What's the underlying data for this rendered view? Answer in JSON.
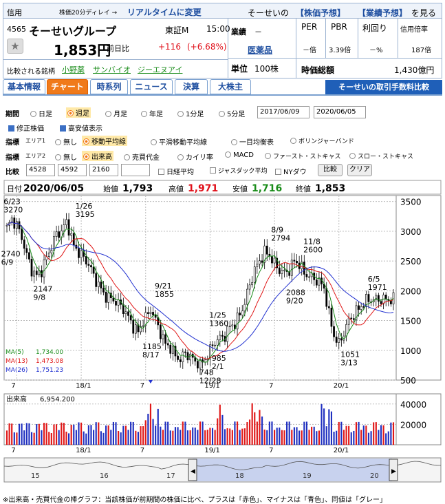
{
  "header": {
    "tab_label": "信用",
    "delay_note": "株価20分ディレイ →",
    "realtime_link": "リアルタイムに変更",
    "forecast_prefix": "そーせいの",
    "stock_forecast": "【株価予想】",
    "earnings_forecast": "【業績予想】",
    "forecast_suffix": "を見る",
    "code": "4565",
    "name": "そーせいグループ",
    "market": "東証M",
    "time": "15:00",
    "price": "1,853円",
    "prev_label": "前日比",
    "change": "+116",
    "change_pct": "(+6.68%)",
    "gyoseki_label": "業績",
    "gyoseki_value": "－",
    "sector": "医薬品",
    "unit_label": "単位",
    "unit_value": "100株",
    "per_label": "PER",
    "pbr_label": "PBR",
    "yield_label": "利回り",
    "margin_label": "信用倍率",
    "per_value": "－倍",
    "pbr_value": "3.39倍",
    "yield_value": "－%",
    "margin_value": "187倍",
    "mcap_label": "時価総額",
    "mcap_value": "1,430億円",
    "compare_label": "比較される銘柄",
    "compare_1": "小野薬",
    "compare_2": "サンバイオ",
    "compare_3": "ジーエヌアイ"
  },
  "tabs": [
    "基本情報",
    "チャート",
    "時系列",
    "ニュース",
    "決算",
    "大株主"
  ],
  "fee_button": "そーせいの取引手数料比較",
  "controls": {
    "period_label": "期間",
    "periods": [
      "日足",
      "週足",
      "月足",
      "年足",
      "1分足",
      "5分足"
    ],
    "from_date": "2017/06/09",
    "to_date": "2020/06/05",
    "check_adjusted": "修正株価",
    "check_highlow": "高安値表示",
    "ind_label": "指標",
    "area1": "エリア1",
    "area1_opts": [
      "無し",
      "移動平均線",
      "平滑移動平均線",
      "一目均衡表",
      "ボリンジャーバンド"
    ],
    "area2": "エリア2",
    "area2_opts": [
      "無し",
      "出来高",
      "売買代金",
      "カイリ率",
      "MACD",
      "ファースト・ストキャス",
      "スロー・ストキャス"
    ],
    "compare_label": "比較",
    "compare_inputs": [
      "4528",
      "4592",
      "2160",
      ""
    ],
    "compare_checks": [
      "日経平均",
      "ジャスダック平均",
      "NYダウ"
    ],
    "compare_btn": "比較",
    "clear_btn": "クリア"
  },
  "chart_data": {
    "type": "candlestick",
    "info": {
      "date_label": "日付",
      "date": "2020/06/05",
      "open_label": "始値",
      "open": "1,793",
      "high_label": "高値",
      "high": "1,971",
      "low_label": "安値",
      "low": "1,716",
      "close_label": "終値",
      "close": "1,853"
    },
    "ylim": [
      500,
      3600
    ],
    "yticks": [
      3500,
      3000,
      2500,
      2000,
      1500,
      1000,
      500
    ],
    "xticks": [
      "7",
      "18/1",
      "7",
      "19/1",
      "7",
      "20/1"
    ],
    "weeks": 157,
    "close_path": [
      [
        0,
        3050
      ],
      [
        2,
        3200
      ],
      [
        4,
        3100
      ],
      [
        6,
        2900
      ],
      [
        8,
        2600
      ],
      [
        10,
        2350
      ],
      [
        12,
        2250
      ],
      [
        14,
        2350
      ],
      [
        16,
        2550
      ],
      [
        18,
        2750
      ],
      [
        20,
        2950
      ],
      [
        22,
        3000
      ],
      [
        24,
        3150
      ],
      [
        25,
        3050
      ],
      [
        27,
        2750
      ],
      [
        29,
        2650
      ],
      [
        31,
        2550
      ],
      [
        33,
        2450
      ],
      [
        35,
        2250
      ],
      [
        37,
        2100
      ],
      [
        39,
        1950
      ],
      [
        41,
        1880
      ],
      [
        43,
        1850
      ],
      [
        45,
        1780
      ],
      [
        47,
        1700
      ],
      [
        49,
        1550
      ],
      [
        51,
        1400
      ],
      [
        53,
        1300
      ],
      [
        55,
        1500
      ],
      [
        57,
        1600
      ],
      [
        58,
        1700
      ],
      [
        60,
        1500
      ],
      [
        62,
        1300
      ],
      [
        64,
        1100
      ],
      [
        66,
        1050
      ],
      [
        68,
        900
      ],
      [
        70,
        850
      ],
      [
        72,
        950
      ],
      [
        74,
        900
      ],
      [
        76,
        800
      ],
      [
        78,
        750
      ],
      [
        80,
        850
      ],
      [
        82,
        1000
      ],
      [
        84,
        1150
      ],
      [
        86,
        1200
      ],
      [
        88,
        1250
      ],
      [
        90,
        1400
      ],
      [
        92,
        1450
      ],
      [
        94,
        1600
      ],
      [
        96,
        1800
      ],
      [
        98,
        2100
      ],
      [
        100,
        2350
      ],
      [
        102,
        2500
      ],
      [
        104,
        2650
      ],
      [
        106,
        2600
      ],
      [
        108,
        2450
      ],
      [
        110,
        2350
      ],
      [
        112,
        2300
      ],
      [
        114,
        2350
      ],
      [
        116,
        2500
      ],
      [
        118,
        2450
      ],
      [
        120,
        2300
      ],
      [
        122,
        2250
      ],
      [
        124,
        2200
      ],
      [
        126,
        2150
      ],
      [
        128,
        2050
      ],
      [
        130,
        1600
      ],
      [
        132,
        1250
      ],
      [
        134,
        1100
      ],
      [
        136,
        1300
      ],
      [
        138,
        1500
      ],
      [
        140,
        1600
      ],
      [
        142,
        1700
      ],
      [
        144,
        1800
      ],
      [
        146,
        1853
      ]
    ],
    "ma": [
      {
        "name": "MA(5)",
        "value": "1,734.00",
        "color": "#1a8c1a"
      },
      {
        "name": "MA(13)",
        "value": "1,473.08",
        "color": "#e01818"
      },
      {
        "name": "MA(26)",
        "value": "1,751.23",
        "color": "#2030d0"
      }
    ],
    "annotations": [
      {
        "label": "6/23",
        "value": "3270",
        "week": 2,
        "price": 3270,
        "pos": "above"
      },
      {
        "label": "2740",
        "value": "6/9",
        "week": 1,
        "price": 2740,
        "pos": "below"
      },
      {
        "label": "2147",
        "value": "9/8",
        "week": 14,
        "price": 2147,
        "pos": "below"
      },
      {
        "label": "1/26",
        "value": "3195",
        "week": 31,
        "price": 3195,
        "pos": "above"
      },
      {
        "label": "9/21",
        "value": "1855",
        "week": 63,
        "price": 1855,
        "pos": "above"
      },
      {
        "label": "1185",
        "value": "8/17",
        "week": 58,
        "price": 1185,
        "pos": "below"
      },
      {
        "label": "1/25",
        "value": "1360",
        "week": 85,
        "price": 1360,
        "pos": "above"
      },
      {
        "label": "985",
        "value": "2/1",
        "week": 86,
        "price": 985,
        "pos": "below"
      },
      {
        "label": "748",
        "value": "12/28",
        "week": 81,
        "price": 748,
        "pos": "below"
      },
      {
        "label": "8/9",
        "value": "2794",
        "week": 110,
        "price": 2794,
        "pos": "above"
      },
      {
        "label": "11/8",
        "value": "2600",
        "week": 123,
        "price": 2600,
        "pos": "above"
      },
      {
        "label": "2088",
        "value": "9/20",
        "week": 116,
        "price": 2088,
        "pos": "below"
      },
      {
        "label": "1051",
        "value": "3/13",
        "week": 138,
        "price": 1051,
        "pos": "below"
      },
      {
        "label": "6/5",
        "value": "1971",
        "week": 149,
        "price": 1971,
        "pos": "above"
      }
    ],
    "volume": {
      "label": "出来高",
      "value": "6,954.200",
      "ylim": [
        0,
        50000
      ],
      "yticks": [
        40000,
        20000
      ]
    },
    "navigator_ticks": [
      "15",
      "16",
      "17",
      "18",
      "19",
      "20"
    ]
  },
  "footnote": "※出来高・売買代金の棒グラフ：当該株価が前期間の株価に比べ、プラスは「赤色」、マイナスは「青色」、同値は「グレー」"
}
